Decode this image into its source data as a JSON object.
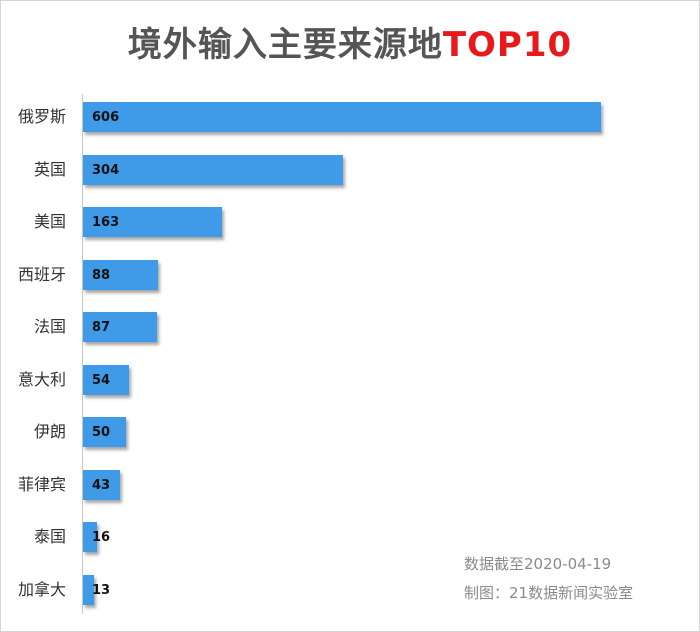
{
  "title": {
    "main": "境外输入主要来源地",
    "accent": "TOP10"
  },
  "colors": {
    "bar": "#3f9ae8",
    "title_accent": "#e8191b",
    "title_main": "#555555"
  },
  "chart_data": {
    "type": "bar",
    "orientation": "horizontal",
    "title": "境外输入主要来源地TOP10",
    "categories": [
      "俄罗斯",
      "英国",
      "美国",
      "西班牙",
      "法国",
      "意大利",
      "伊朗",
      "菲律宾",
      "泰国",
      "加拿大"
    ],
    "values": [
      606,
      304,
      163,
      88,
      87,
      54,
      50,
      43,
      16,
      13
    ],
    "xlim": [
      0,
      606
    ],
    "grid": false,
    "legend": "none"
  },
  "footer": {
    "date": "数据截至2020-04-19",
    "credit": "制图：21数据新闻实验室"
  }
}
